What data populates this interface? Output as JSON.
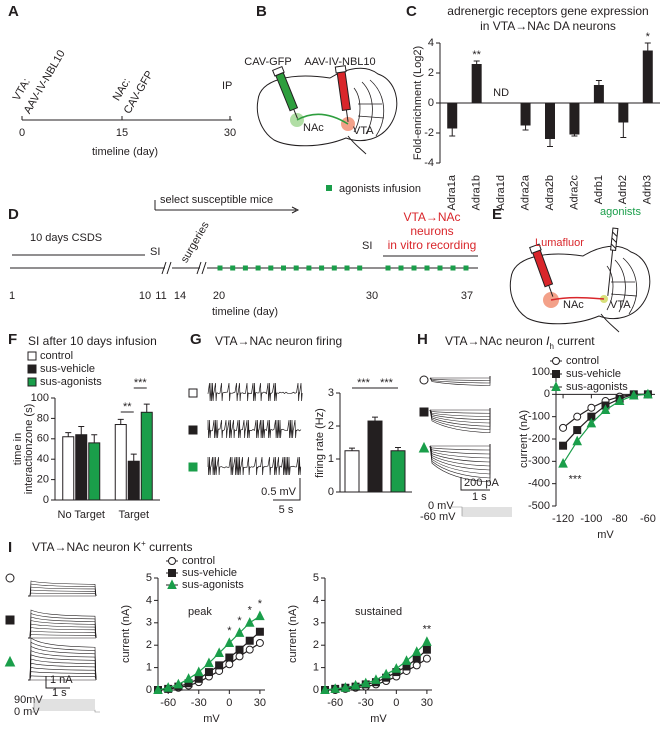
{
  "diagrams": {
    "A": {
      "panel": "A",
      "vta": [
        "VTA:",
        "AAV-IV-NBL10"
      ],
      "nac": [
        "NAc:",
        "CAV-GFP"
      ],
      "ip": "IP",
      "ticks": [
        0,
        15,
        30
      ],
      "axis_label": "timeline (day)"
    },
    "B": {
      "panel": "B",
      "labels": [
        "CAV-GFP",
        "AAV-IV-NBL10",
        "NAc",
        "VTA"
      ]
    },
    "D": {
      "panel": "D",
      "arrow_label": "select susceptible mice",
      "legend": "agonists infusion",
      "csds": "10 days CSDS",
      "si_1": "SI",
      "surgeries": "surgeries",
      "si_2": "SI",
      "recording": [
        "VTA→NAc",
        "neurons",
        "in vitro recording"
      ],
      "ticks": [
        1,
        10,
        11,
        14,
        20,
        30,
        37
      ],
      "axis_label": "timeline (day)"
    },
    "E": {
      "panel": "E",
      "labels": [
        "Lumafluor",
        "agonists",
        "NAc",
        "VTA"
      ]
    }
  },
  "chart_data": [
    {
      "panel": "C",
      "type": "bar",
      "title": [
        "adrenergic receptors gene expression",
        "in VTA→NAc DA neurons"
      ],
      "ylabel": "Fold-enrichment (Log2)",
      "categories": [
        "Adra1a",
        "Adra1b",
        "Adra1d",
        "Adra2a",
        "Adra2b",
        "Adra2c",
        "Adrb1",
        "Adrb2",
        "Adrb3"
      ],
      "values": [
        -1.7,
        2.6,
        null,
        -1.5,
        -2.4,
        -2.1,
        1.2,
        -1.3,
        3.5
      ],
      "errors": [
        0.5,
        0.2,
        null,
        0.3,
        0.5,
        0.1,
        0.3,
        1.0,
        0.5
      ],
      "color": "#231f20",
      "ylim": [
        -4,
        4
      ],
      "yticks": [
        -4,
        -2,
        0,
        2,
        4
      ],
      "annotations": [
        "**",
        "ND",
        "*"
      ]
    },
    {
      "panel": "F",
      "type": "grouped_bar",
      "title": "SI after 10 days infusion",
      "ylabel": [
        "time in",
        "interactionzone (s)"
      ],
      "categories": [
        "No Target",
        "Target"
      ],
      "series": [
        {
          "name": "control",
          "color": "#ffffff",
          "values": [
            62,
            74
          ],
          "errors": [
            4,
            5
          ]
        },
        {
          "name": "sus-vehicle",
          "color": "#231f20",
          "values": [
            64,
            38
          ],
          "errors": [
            8,
            7
          ]
        },
        {
          "name": "sus-agonists",
          "color": "#1a9e4a",
          "values": [
            56,
            86
          ],
          "errors": [
            8,
            8
          ]
        }
      ],
      "ylim": [
        0,
        100
      ],
      "yticks": [
        0,
        20,
        40,
        60,
        80,
        100
      ],
      "annotations": [
        "**",
        "***"
      ]
    },
    {
      "panel": "G",
      "type": "bar",
      "title": "VTA→NAc neuron firing",
      "ylabel": "firing rate (Hz)",
      "values": [
        1.25,
        2.15,
        1.25
      ],
      "errors": [
        0.08,
        0.12,
        0.1
      ],
      "colors": [
        "#ffffff",
        "#231f20",
        "#1a9e4a"
      ],
      "ylim": [
        0,
        3
      ],
      "yticks": [
        0,
        1,
        2,
        3
      ],
      "annotations": [
        "***",
        "***"
      ],
      "scale_bar": [
        "0.5 mV",
        "5 s"
      ]
    },
    {
      "panel": "H",
      "type": "line",
      "title": [
        "VTA→NAc neuron ",
        "I",
        "h",
        " current"
      ],
      "ylabel": "current (nA)",
      "xlabel": "mV",
      "x": [
        -120,
        -110,
        -100,
        -90,
        -80,
        -70,
        -60
      ],
      "series": [
        {
          "name": "control",
          "color": "#ffffff",
          "marker": "circle",
          "values": [
            -150,
            -100,
            -60,
            -30,
            -10,
            0,
            0
          ]
        },
        {
          "name": "sus-vehicle",
          "color": "#231f20",
          "marker": "square",
          "values": [
            -230,
            -160,
            -100,
            -50,
            -20,
            0,
            0
          ]
        },
        {
          "name": "sus-agonists",
          "color": "#1a9e4a",
          "marker": "triangle",
          "values": [
            -310,
            -210,
            -130,
            -70,
            -30,
            -5,
            0
          ]
        }
      ],
      "xlim": [
        -125,
        -55
      ],
      "xticks": [
        -120,
        -100,
        -80,
        -60
      ],
      "ylim": [
        -500,
        100
      ],
      "yticks": [
        -500,
        -400,
        -300,
        -200,
        -100,
        0,
        100
      ],
      "annotations": [
        "***"
      ],
      "scale_bar": [
        "200 pA",
        "1 s"
      ],
      "protocol": [
        "0 mV",
        "-60 mV"
      ]
    },
    {
      "panel": "I",
      "type": "line",
      "title": [
        "VTA→NAc neuron K",
        "+",
        " currents"
      ],
      "label": "peak",
      "ylabel": "current (nA)",
      "xlabel": "mV",
      "x": [
        -70,
        -60,
        -50,
        -40,
        -30,
        -20,
        -10,
        0,
        10,
        20,
        30
      ],
      "series": [
        {
          "name": "control",
          "color": "#ffffff",
          "marker": "circle",
          "values": [
            0,
            0.05,
            0.1,
            0.2,
            0.35,
            0.6,
            0.85,
            1.15,
            1.5,
            1.8,
            2.1
          ]
        },
        {
          "name": "sus-vehicle",
          "color": "#231f20",
          "marker": "square",
          "values": [
            0,
            0.05,
            0.15,
            0.3,
            0.5,
            0.8,
            1.1,
            1.45,
            1.8,
            2.2,
            2.6
          ]
        },
        {
          "name": "sus-agonists",
          "color": "#1a9e4a",
          "marker": "triangle",
          "values": [
            0,
            0.1,
            0.25,
            0.5,
            0.8,
            1.2,
            1.65,
            2.1,
            2.55,
            3.0,
            3.3
          ]
        }
      ],
      "xlim": [
        -70,
        35
      ],
      "xticks": [
        -60,
        -30,
        0,
        30
      ],
      "ylim": [
        0,
        5
      ],
      "yticks": [
        0,
        1,
        2,
        3,
        4,
        5
      ],
      "annotations": [
        "*",
        "*",
        "*",
        "*"
      ],
      "scale_bar": [
        "1 nA",
        "1 s"
      ],
      "protocol": [
        "90mV",
        "0 mV"
      ]
    },
    {
      "type": "line",
      "label": "sustained",
      "ylabel": "current (nA)",
      "xlabel": "mV",
      "x": [
        -70,
        -60,
        -50,
        -40,
        -30,
        -20,
        -10,
        0,
        10,
        20,
        30
      ],
      "series": [
        {
          "color": "#ffffff",
          "marker": "circle",
          "values": [
            0,
            0,
            0.05,
            0.1,
            0.15,
            0.25,
            0.4,
            0.6,
            0.85,
            1.1,
            1.4
          ]
        },
        {
          "color": "#231f20",
          "marker": "square",
          "values": [
            0,
            0.05,
            0.1,
            0.15,
            0.25,
            0.35,
            0.55,
            0.8,
            1.05,
            1.4,
            1.8
          ]
        },
        {
          "color": "#1a9e4a",
          "marker": "triangle",
          "values": [
            0,
            0.05,
            0.1,
            0.2,
            0.3,
            0.45,
            0.7,
            0.95,
            1.3,
            1.7,
            2.15
          ]
        }
      ],
      "xlim": [
        -70,
        35
      ],
      "xticks": [
        -60,
        -30,
        0,
        30
      ],
      "ylim": [
        0,
        5
      ],
      "yticks": [
        0,
        1,
        2,
        3,
        4,
        5
      ],
      "annotations": [
        "**"
      ]
    }
  ]
}
